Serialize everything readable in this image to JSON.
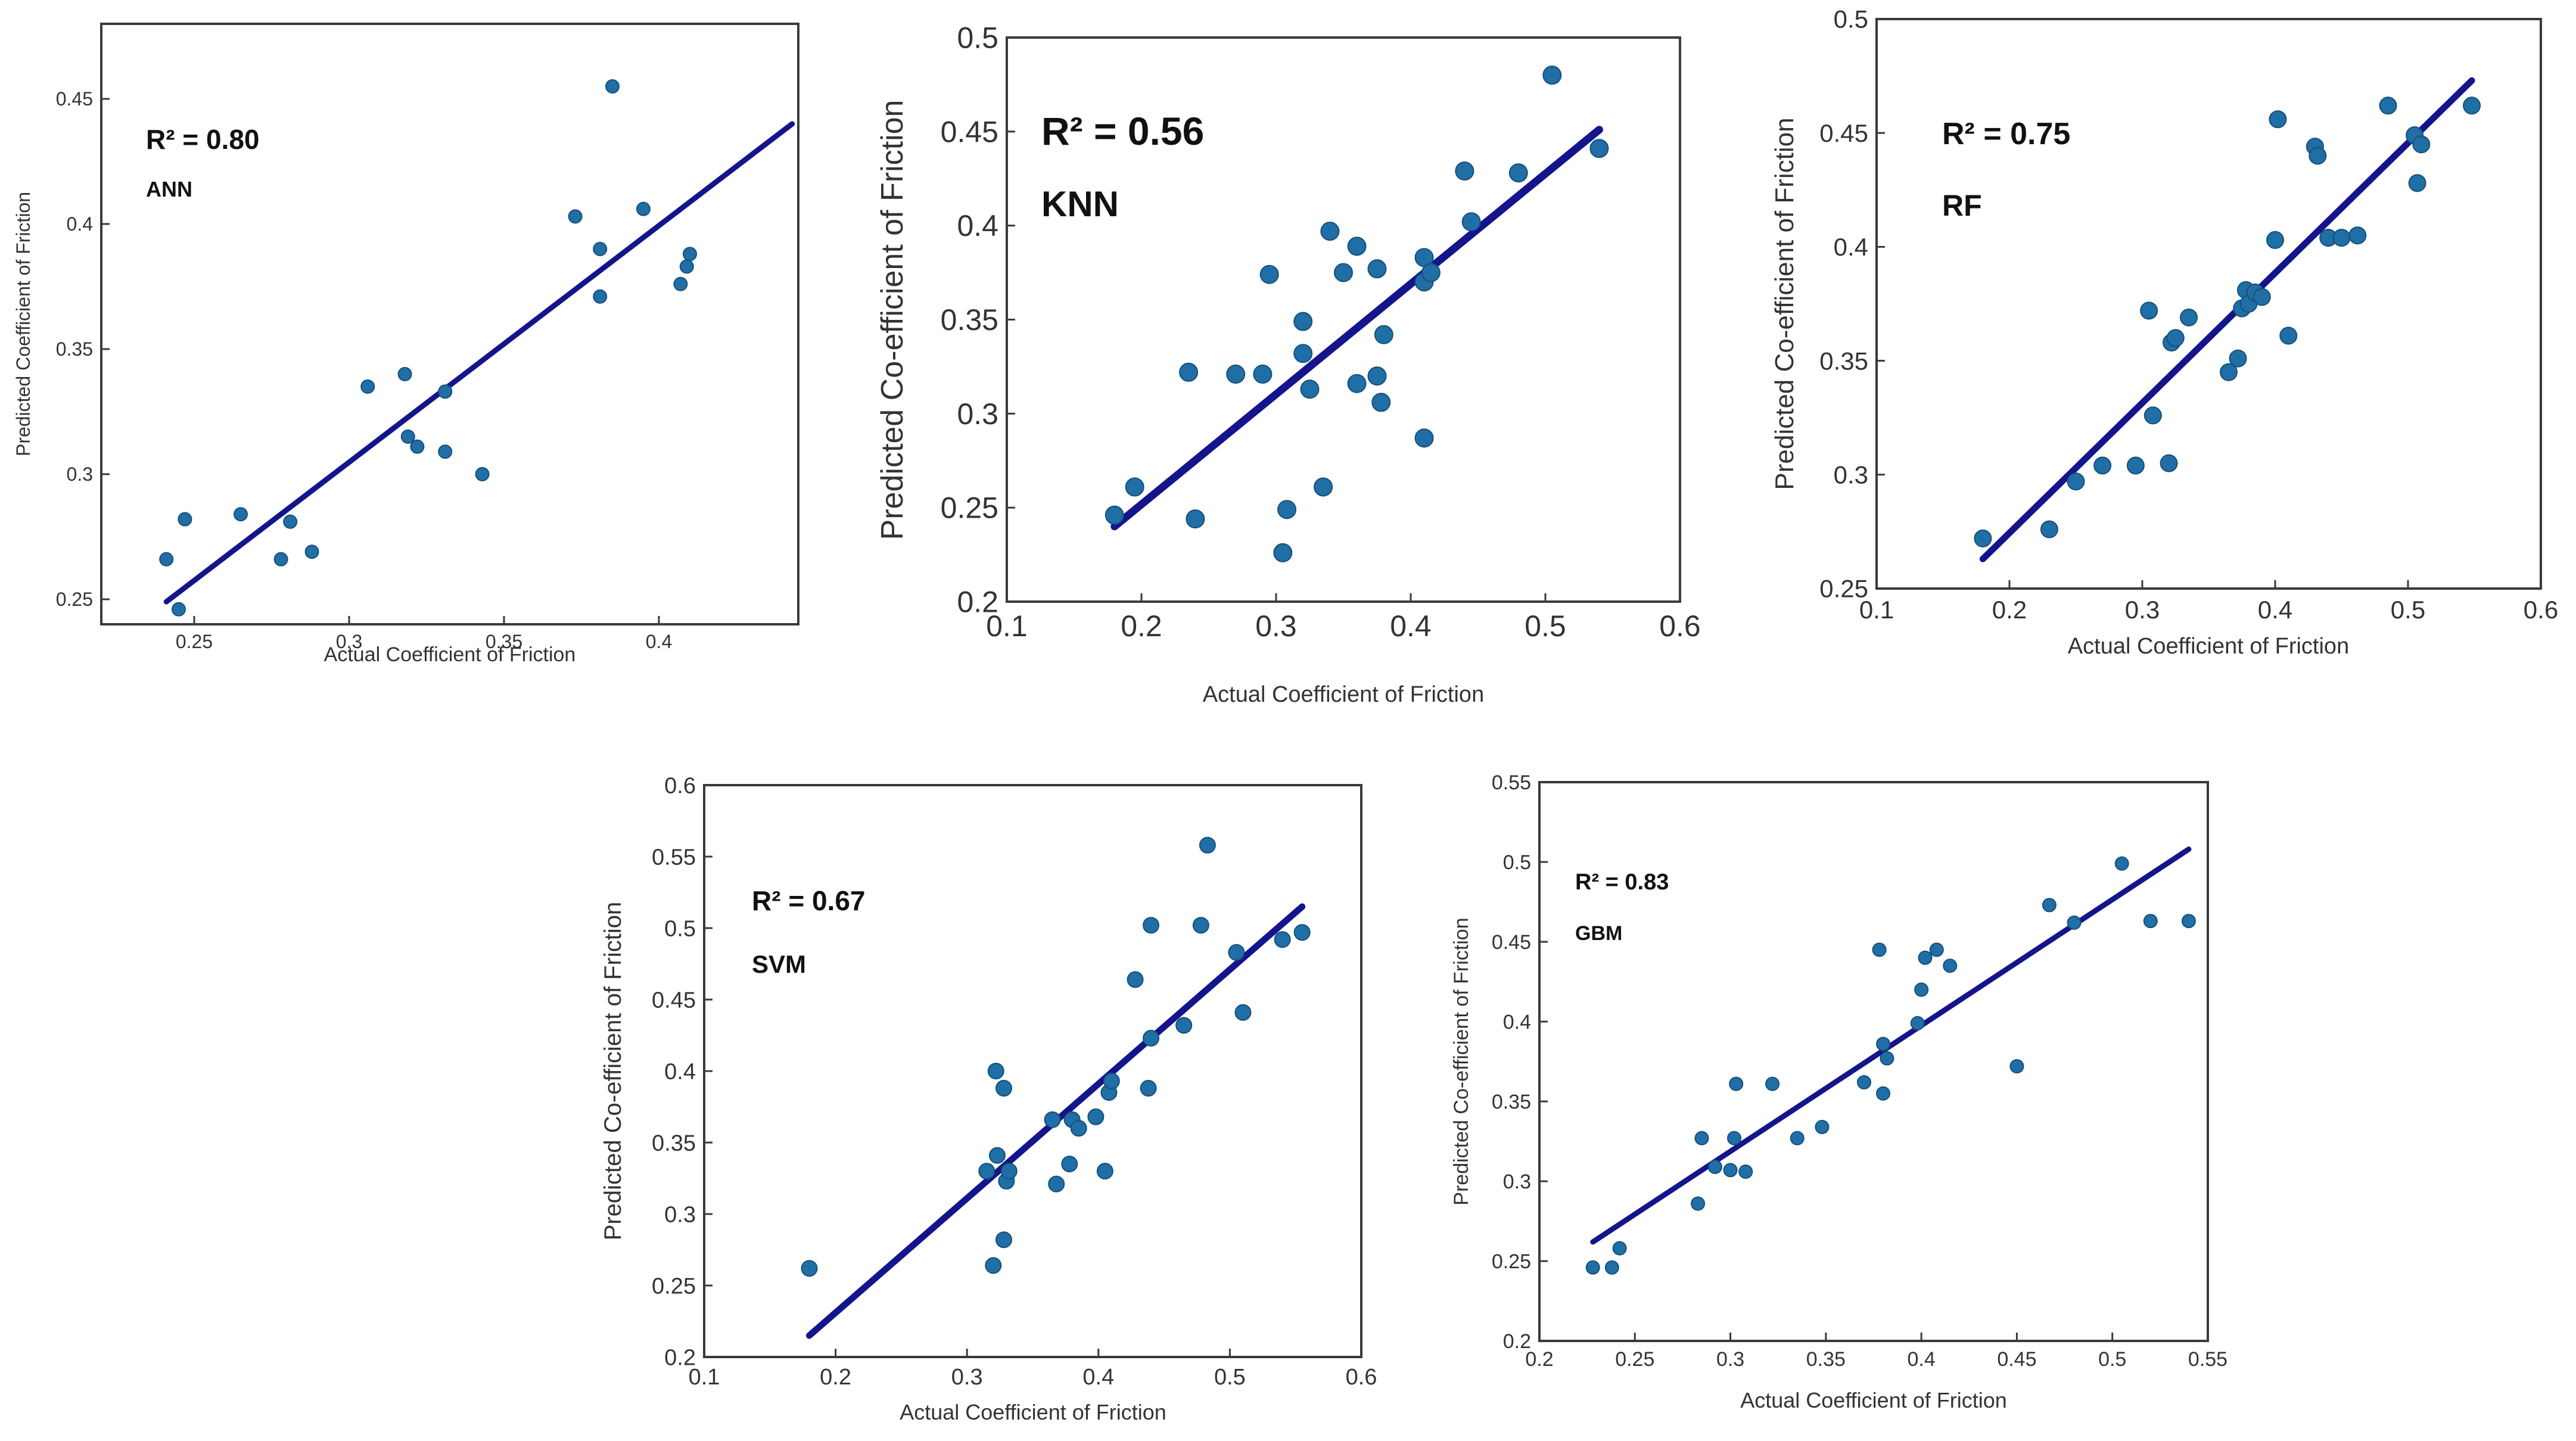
{
  "chart_data": [
    {
      "type": "scatter",
      "model": "ANN",
      "r2_label": "R² = 0.80",
      "xlabel": "Actual Coefficient of Friction",
      "ylabel": "Predicted Coefficient of Friction",
      "xlim": [
        0.22,
        0.445
      ],
      "ylim": [
        0.24,
        0.48
      ],
      "xticks": [
        0.25,
        0.3,
        0.35,
        0.4
      ],
      "xtick_labels": [
        "0.25",
        "0.3",
        "0.35",
        "0.4"
      ],
      "yticks": [
        0.25,
        0.3,
        0.35,
        0.4,
        0.45
      ],
      "ytick_labels": [
        "0.25",
        "0.3",
        "0.35",
        "0.4",
        "0.45"
      ],
      "fit": [
        [
          0.241,
          0.249
        ],
        [
          0.443,
          0.44
        ]
      ],
      "x": [
        0.241,
        0.245,
        0.247,
        0.265,
        0.278,
        0.281,
        0.288,
        0.306,
        0.318,
        0.319,
        0.322,
        0.331,
        0.331,
        0.343,
        0.373,
        0.381,
        0.381,
        0.385,
        0.395,
        0.407,
        0.409,
        0.41
      ],
      "y": [
        0.266,
        0.246,
        0.282,
        0.284,
        0.266,
        0.281,
        0.269,
        0.335,
        0.34,
        0.315,
        0.311,
        0.309,
        0.333,
        0.3,
        0.403,
        0.39,
        0.371,
        0.455,
        0.406,
        0.376,
        0.383,
        0.388
      ]
    },
    {
      "type": "scatter",
      "model": "KNN",
      "r2_label": "R² = 0.56",
      "xlabel": "Actual Coefficient of Friction",
      "ylabel": "Predicted Co-efficient of Friction",
      "xlim": [
        0.1,
        0.6
      ],
      "ylim": [
        0.2,
        0.5
      ],
      "xticks": [
        0.1,
        0.2,
        0.3,
        0.4,
        0.5,
        0.6
      ],
      "xtick_labels": [
        "0.1",
        "0.2",
        "0.3",
        "0.4",
        "0.5",
        "0.6"
      ],
      "yticks": [
        0.2,
        0.25,
        0.3,
        0.35,
        0.4,
        0.45,
        0.5
      ],
      "ytick_labels": [
        "0.2",
        "0.25",
        "0.3",
        "0.35",
        "0.4",
        "0.45",
        "0.5"
      ],
      "fit": [
        [
          0.18,
          0.24
        ],
        [
          0.54,
          0.451
        ]
      ],
      "x": [
        0.18,
        0.195,
        0.235,
        0.24,
        0.27,
        0.29,
        0.295,
        0.305,
        0.308,
        0.32,
        0.32,
        0.325,
        0.335,
        0.34,
        0.35,
        0.36,
        0.36,
        0.375,
        0.375,
        0.378,
        0.38,
        0.41,
        0.41,
        0.41,
        0.415,
        0.44,
        0.445,
        0.48,
        0.505,
        0.54
      ],
      "y": [
        0.246,
        0.261,
        0.322,
        0.244,
        0.321,
        0.321,
        0.374,
        0.226,
        0.249,
        0.332,
        0.349,
        0.313,
        0.261,
        0.397,
        0.375,
        0.389,
        0.316,
        0.32,
        0.377,
        0.306,
        0.342,
        0.287,
        0.37,
        0.383,
        0.375,
        0.429,
        0.402,
        0.428,
        0.48,
        0.441
      ]
    },
    {
      "type": "scatter",
      "model": "RF",
      "r2_label": "R² = 0.75",
      "xlabel": "Actual Coefficient of Friction",
      "ylabel": "Predicted Co-efficient of Friction",
      "xlim": [
        0.1,
        0.6
      ],
      "ylim": [
        0.25,
        0.5
      ],
      "xticks": [
        0.1,
        0.2,
        0.3,
        0.4,
        0.5,
        0.6
      ],
      "xtick_labels": [
        "0.1",
        "0.2",
        "0.3",
        "0.4",
        "0.5",
        "0.6"
      ],
      "yticks": [
        0.25,
        0.3,
        0.35,
        0.4,
        0.45,
        0.5
      ],
      "ytick_labels": [
        "0.25",
        "0.3",
        "0.35",
        "0.4",
        "0.45",
        "0.5"
      ],
      "fit": [
        [
          0.18,
          0.263
        ],
        [
          0.548,
          0.473
        ]
      ],
      "x": [
        0.18,
        0.23,
        0.25,
        0.27,
        0.295,
        0.305,
        0.308,
        0.32,
        0.322,
        0.325,
        0.335,
        0.365,
        0.372,
        0.375,
        0.378,
        0.38,
        0.385,
        0.39,
        0.4,
        0.402,
        0.41,
        0.43,
        0.432,
        0.44,
        0.45,
        0.462,
        0.485,
        0.505,
        0.507,
        0.51,
        0.548
      ],
      "y": [
        0.272,
        0.276,
        0.297,
        0.304,
        0.304,
        0.372,
        0.326,
        0.305,
        0.358,
        0.36,
        0.369,
        0.345,
        0.351,
        0.373,
        0.381,
        0.375,
        0.38,
        0.378,
        0.403,
        0.456,
        0.361,
        0.444,
        0.44,
        0.404,
        0.404,
        0.405,
        0.462,
        0.449,
        0.428,
        0.445,
        0.462
      ]
    },
    {
      "type": "scatter",
      "model": "SVM",
      "r2_label": "R² = 0.67",
      "xlabel": "Actual Coefficient of Friction",
      "ylabel": "Predicted Co-efficient of Friction",
      "xlim": [
        0.1,
        0.6
      ],
      "ylim": [
        0.2,
        0.6
      ],
      "xticks": [
        0.1,
        0.2,
        0.3,
        0.4,
        0.5,
        0.6
      ],
      "xtick_labels": [
        "0.1",
        "0.2",
        "0.3",
        "0.4",
        "0.5",
        "0.6"
      ],
      "yticks": [
        0.2,
        0.25,
        0.3,
        0.35,
        0.4,
        0.45,
        0.5,
        0.55,
        0.6
      ],
      "ytick_labels": [
        "0.2",
        "0.25",
        "0.3",
        "0.35",
        "0.4",
        "0.45",
        "0.5",
        "0.55",
        "0.6"
      ],
      "fit": [
        [
          0.18,
          0.215
        ],
        [
          0.555,
          0.515
        ]
      ],
      "x": [
        0.18,
        0.315,
        0.32,
        0.322,
        0.323,
        0.328,
        0.328,
        0.33,
        0.332,
        0.365,
        0.368,
        0.378,
        0.38,
        0.385,
        0.398,
        0.405,
        0.408,
        0.41,
        0.428,
        0.438,
        0.44,
        0.44,
        0.465,
        0.478,
        0.483,
        0.505,
        0.51,
        0.54,
        0.555
      ],
      "y": [
        0.262,
        0.33,
        0.264,
        0.4,
        0.341,
        0.282,
        0.388,
        0.323,
        0.33,
        0.366,
        0.321,
        0.335,
        0.366,
        0.36,
        0.368,
        0.33,
        0.385,
        0.393,
        0.464,
        0.388,
        0.423,
        0.502,
        0.432,
        0.502,
        0.558,
        0.483,
        0.441,
        0.492,
        0.497
      ]
    },
    {
      "type": "scatter",
      "model": "GBM",
      "r2_label": "R² = 0.83",
      "xlabel": "Actual Coefficient of Friction",
      "ylabel": "Predicted Co-efficient of Friction",
      "xlim": [
        0.2,
        0.55
      ],
      "ylim": [
        0.2,
        0.55
      ],
      "xticks": [
        0.2,
        0.25,
        0.3,
        0.35,
        0.4,
        0.45,
        0.5,
        0.55
      ],
      "xtick_labels": [
        "0.2",
        "0.25",
        "0.3",
        "0.35",
        "0.4",
        "0.45",
        "0.5",
        "0.55"
      ],
      "yticks": [
        0.2,
        0.25,
        0.3,
        0.35,
        0.4,
        0.45,
        0.5,
        0.55
      ],
      "ytick_labels": [
        "0.2",
        "0.25",
        "0.3",
        "0.35",
        "0.4",
        "0.45",
        "0.5",
        "0.55"
      ],
      "fit": [
        [
          0.228,
          0.262
        ],
        [
          0.54,
          0.508
        ]
      ],
      "x": [
        0.228,
        0.238,
        0.242,
        0.283,
        0.285,
        0.292,
        0.3,
        0.302,
        0.303,
        0.308,
        0.322,
        0.335,
        0.348,
        0.37,
        0.378,
        0.38,
        0.38,
        0.382,
        0.398,
        0.4,
        0.402,
        0.408,
        0.415,
        0.45,
        0.467,
        0.48,
        0.505,
        0.52,
        0.54
      ],
      "y": [
        0.246,
        0.246,
        0.258,
        0.286,
        0.327,
        0.309,
        0.307,
        0.327,
        0.361,
        0.306,
        0.361,
        0.327,
        0.334,
        0.362,
        0.445,
        0.355,
        0.386,
        0.377,
        0.399,
        0.42,
        0.44,
        0.445,
        0.435,
        0.372,
        0.473,
        0.462,
        0.499,
        0.463,
        0.463
      ]
    }
  ]
}
